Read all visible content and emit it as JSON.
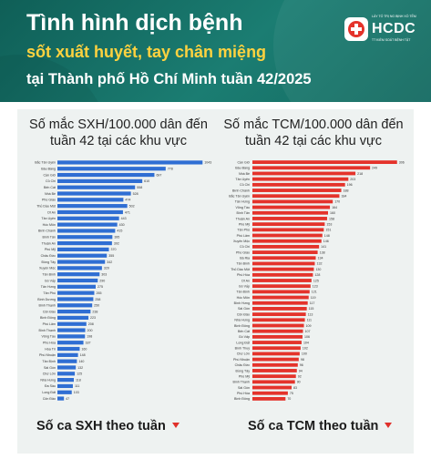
{
  "header": {
    "title_line1": "Tình hình dịch bệnh",
    "title_line2": "sốt xuất huyết, tay chân miệng",
    "title_line3": "tại Thành phố Hồ Chí Minh tuần 42/2025",
    "logo": {
      "tagline": "LÀY TỐ TRỊ NG BỊNH XỐ TẾM",
      "name": "HCDC",
      "subtitle": "TT KIỂM SOÁT BỆNH TẬT"
    }
  },
  "colors": {
    "header_bg": "#1b7d72",
    "title_yellow": "#ffd23f",
    "bar_sxh": "#2f6ed3",
    "bar_tcm": "#e4332b",
    "card_bg": "#eef2f1",
    "trend_down": "#e0302a"
  },
  "chart_data": [
    {
      "type": "bar",
      "orientation": "horizontal",
      "title": "Số mắc SXH/100.000 dân đến tuần 42 tại các khu vực",
      "categories": [
        "Bắc Tân Uyên",
        "Bàu Bàng",
        "Cần Giờ",
        "Củ Chi",
        "Bến Cát",
        "Nhà Bè",
        "Phú Giáo",
        "Thủ Dầu Một",
        "Dĩ An",
        "Tân Uyên",
        "Hóc Môn",
        "Bình Chánh",
        "Bình Tân",
        "Thuận An",
        "Phú Mỹ",
        "Châu Đức",
        "Đồng Tây",
        "Xuyên Mộc",
        "Tân Bình",
        "Gò Vấp",
        "Tân Hưng",
        "Tân Phú",
        "Bình Dương",
        "Bình Thạnh",
        "Côn Đảo",
        "Bình Đông",
        "Phú Lâm",
        "Bình Thạnh",
        "Vũng Tàu",
        "Phú Hòa",
        "Hòa Trì",
        "Phú Nhuận",
        "Tân Định",
        "Sài Gòn",
        "Chợ Lớn",
        "Nhà Hưng",
        "Đa Sầu",
        "Long Đất",
        "Côn Đảo"
      ],
      "values": [
        1043,
        778,
        697,
        610,
        558,
        528,
        474,
        502,
        471,
        443,
        430,
        415,
        395,
        392,
        370,
        355,
        342,
        320,
        303,
        290,
        275,
        265,
        258,
        250,
        238,
        223,
        208,
        200,
        198,
        187,
        160,
        148,
        140,
        132,
        125,
        118,
        111,
        103,
        47
      ],
      "value_labels": [
        "1043",
        "778",
        "697",
        "610",
        "558",
        "528",
        "474",
        "502",
        "471",
        "443",
        "430",
        "415",
        "395",
        "392",
        "370",
        "355",
        "342",
        "320",
        "303",
        "290",
        "275",
        "265",
        "258",
        "250",
        "238",
        "223",
        "208",
        "200",
        "198",
        "187",
        "160",
        "148",
        "140",
        "132",
        "125",
        "118",
        "111",
        "103",
        "47"
      ],
      "xlim": [
        0,
        1100
      ]
    },
    {
      "type": "bar",
      "orientation": "horizontal",
      "title": "Số mắc TCM/100.000 dân đến tuần 42 tại các khu vực",
      "categories": [
        "Cần Giờ",
        "Bàu Bàng",
        "Nhà Bè",
        "Tân Uyên",
        "Củ Chi",
        "Bình Chánh",
        "Bắc Tân Uyên",
        "Tân Hưng",
        "Vũng Tàu",
        "Bình Tân",
        "Thuận An",
        "Phú Mỹ",
        "Tân Phú",
        "Phú Lâm",
        "Xuyên Mộc",
        "Củ Chi",
        "Phú Giáo",
        "Bà Rịa",
        "Tân Bình",
        "Thủ Dầu Một",
        "Phú Hòa",
        "Dĩ An",
        "Gò Vấp",
        "Tân Định",
        "Hóc Môn",
        "Bình Hưng",
        "Sài Gòn",
        "Côn Đảo",
        "Nhà Hưng",
        "Bình Đông",
        "Bến Cát",
        "Gò Vấp",
        "Long Đất",
        "Bình Thuỷ",
        "Chợ Lớn",
        "Phú Nhuận",
        "Châu Đức",
        "Đồng Tây",
        "Phú Mỹ",
        "Bình Thạnh",
        "Sài Gòn",
        "Phú Hòa",
        "Bình Đông"
      ],
      "values": [
        306,
        249,
        218,
        203,
        196,
        188,
        184,
        170,
        164,
        160,
        158,
        153,
        151,
        148,
        146,
        141,
        138,
        134,
        132,
        130,
        128,
        125,
        123,
        121,
        119,
        117,
        115,
        113,
        111,
        109,
        107,
        106,
        104,
        102,
        100,
        98,
        96,
        94,
        92,
        90,
        83,
        75,
        70
      ],
      "value_labels": [
        "306",
        "249",
        "218",
        "203",
        "196",
        "188",
        "184",
        "170",
        "164",
        "160",
        "158",
        "153",
        "151",
        "148",
        "146",
        "141",
        "138",
        "134",
        "132",
        "130",
        "128",
        "125",
        "123",
        "121",
        "119",
        "117",
        "115",
        "113",
        "111",
        "109",
        "107",
        "106",
        "104",
        "102",
        "100",
        "98",
        "96",
        "94",
        "92",
        "90",
        "83",
        "75",
        "70"
      ],
      "xlim": [
        0,
        320
      ]
    }
  ],
  "footer": {
    "left_label": "Số ca SXH theo tuần",
    "right_label": "Số ca TCM theo tuần"
  }
}
